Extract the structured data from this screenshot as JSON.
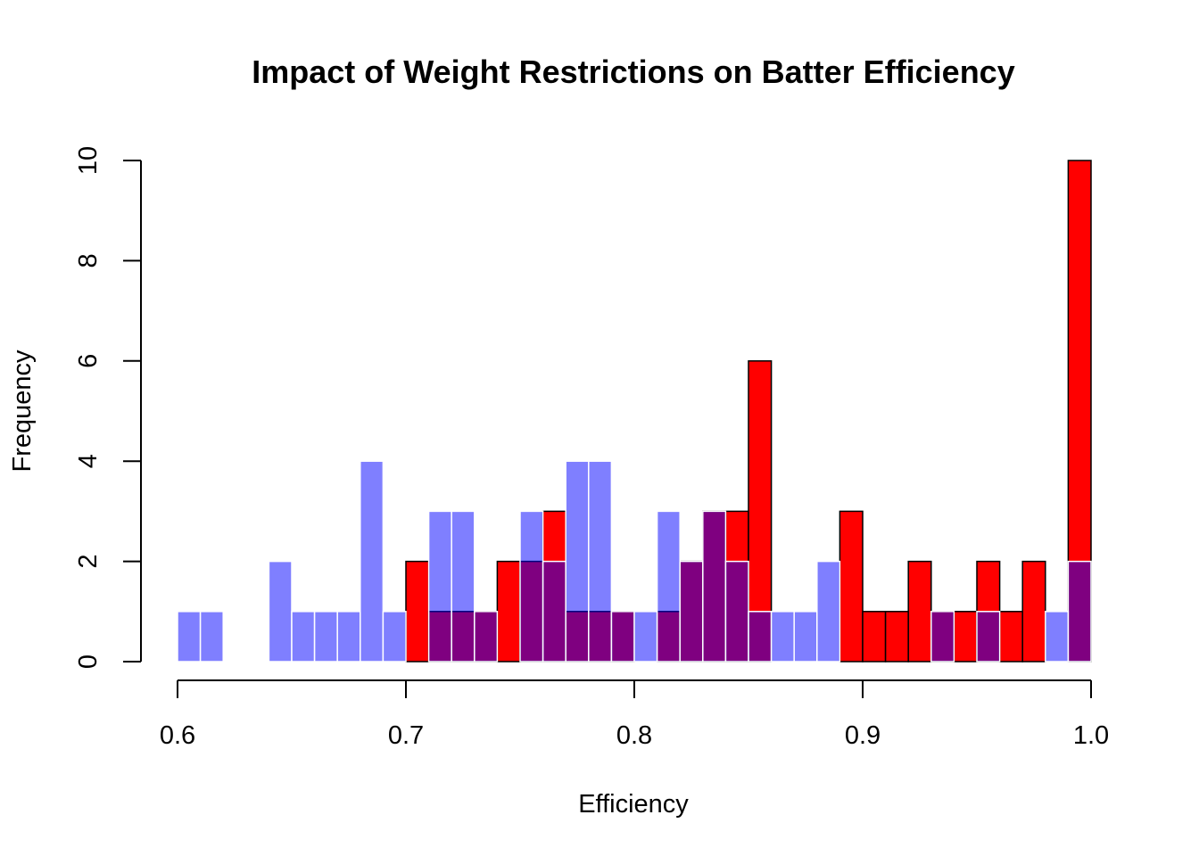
{
  "chart_data": {
    "type": "bar",
    "title": "Impact of Weight Restrictions on Batter Efficiency",
    "xlabel": "Efficiency",
    "ylabel": "Frequency",
    "xlim": [
      0.6,
      1.0
    ],
    "ylim": [
      0,
      10
    ],
    "bin_width": 0.01,
    "x_ticks": [
      "0.6",
      "0.7",
      "0.8",
      "0.9",
      "1.0"
    ],
    "y_ticks": [
      "0",
      "2",
      "4",
      "6",
      "8",
      "10"
    ],
    "bin_starts": [
      0.6,
      0.61,
      0.62,
      0.63,
      0.64,
      0.65,
      0.66,
      0.67,
      0.68,
      0.69,
      0.7,
      0.71,
      0.72,
      0.73,
      0.74,
      0.75,
      0.76,
      0.77,
      0.78,
      0.79,
      0.8,
      0.81,
      0.82,
      0.83,
      0.84,
      0.85,
      0.86,
      0.87,
      0.88,
      0.89,
      0.9,
      0.91,
      0.92,
      0.93,
      0.94,
      0.95,
      0.96,
      0.97,
      0.98,
      0.99
    ],
    "series": [
      {
        "color": "#ff0000",
        "border": "#000000",
        "values": [
          0,
          0,
          0,
          0,
          0,
          0,
          0,
          0,
          0,
          0,
          2,
          1,
          1,
          1,
          2,
          2,
          3,
          1,
          1,
          1,
          0,
          1,
          2,
          3,
          3,
          6,
          0,
          0,
          0,
          3,
          1,
          1,
          2,
          1,
          1,
          2,
          1,
          2,
          0,
          10
        ]
      },
      {
        "color": "#0000ff80",
        "border": "#ffffff",
        "values": [
          1,
          1,
          0,
          0,
          2,
          1,
          1,
          1,
          4,
          1,
          0,
          3,
          3,
          1,
          0,
          3,
          2,
          4,
          4,
          1,
          1,
          3,
          2,
          3,
          2,
          1,
          1,
          1,
          2,
          0,
          0,
          0,
          0,
          1,
          0,
          1,
          0,
          0,
          1,
          2
        ]
      }
    ]
  }
}
